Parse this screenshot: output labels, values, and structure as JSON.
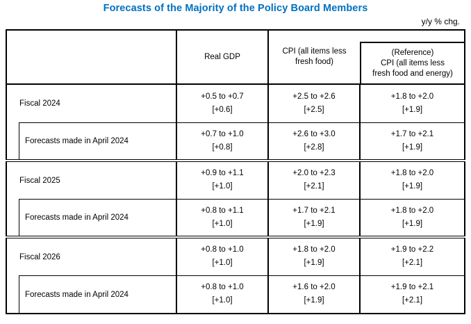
{
  "page": {
    "title": "Forecasts of the Majority of the Policy Board Members",
    "unit_label": "y/y % chg."
  },
  "colors": {
    "title_blue": "#0070C0",
    "table_border": "#000000"
  },
  "table": {
    "columns": {
      "row_header": "",
      "real_gdp": "Real GDP",
      "cpi": "CPI (all items less\nfresh food)",
      "cpi_reference": "(Reference)\nCPI (all items less\nfresh food and energy)"
    },
    "rows": [
      {
        "label": "Fiscal 2024",
        "real_gdp": {
          "range": "+0.5 to +0.7",
          "median": "[+0.6]"
        },
        "cpi": {
          "range": "+2.5 to +2.6",
          "median": "[+2.5]"
        },
        "cpi_reference": {
          "range": "+1.8 to +2.0",
          "median": "[+1.9]"
        }
      },
      {
        "label": "Forecasts made in April 2024",
        "real_gdp": {
          "range": "+0.7 to +1.0",
          "median": "[+0.8]"
        },
        "cpi": {
          "range": "+2.6 to +3.0",
          "median": "[+2.8]"
        },
        "cpi_reference": {
          "range": "+1.7 to +2.1",
          "median": "[+1.9]"
        }
      },
      {
        "label": "Fiscal 2025",
        "real_gdp": {
          "range": "+0.9 to +1.1",
          "median": "[+1.0]"
        },
        "cpi": {
          "range": "+2.0 to +2.3",
          "median": "[+2.1]"
        },
        "cpi_reference": {
          "range": "+1.8 to +2.0",
          "median": "[+1.9]"
        }
      },
      {
        "label": "Forecasts made in April 2024",
        "real_gdp": {
          "range": "+0.8 to +1.1",
          "median": "[+1.0]"
        },
        "cpi": {
          "range": "+1.7 to +2.1",
          "median": "[+1.9]"
        },
        "cpi_reference": {
          "range": "+1.8 to +2.0",
          "median": "[+1.9]"
        }
      },
      {
        "label": "Fiscal 2026",
        "real_gdp": {
          "range": "+0.8 to +1.0",
          "median": "[+1.0]"
        },
        "cpi": {
          "range": "+1.8 to +2.0",
          "median": "[+1.9]"
        },
        "cpi_reference": {
          "range": "+1.9 to +2.2",
          "median": "[+2.1]"
        }
      },
      {
        "label": "Forecasts made in April 2024",
        "real_gdp": {
          "range": "+0.8 to +1.0",
          "median": "[+1.0]"
        },
        "cpi": {
          "range": "+1.6 to +2.0",
          "median": "[+1.9]"
        },
        "cpi_reference": {
          "range": "+1.9 to +2.1",
          "median": "[+2.1]"
        }
      }
    ]
  }
}
